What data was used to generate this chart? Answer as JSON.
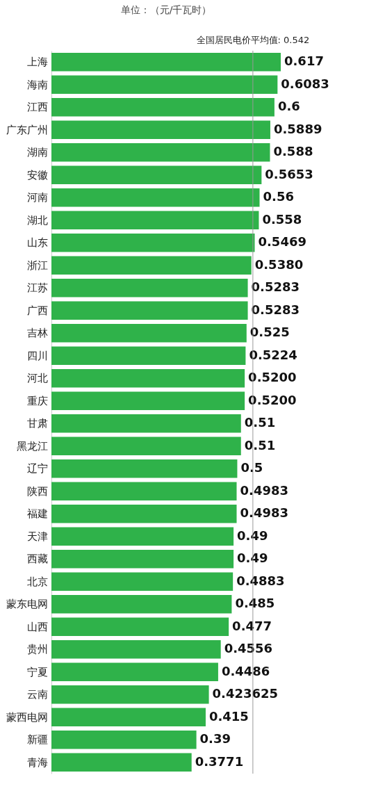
{
  "chart_data": {
    "type": "bar",
    "orientation": "horizontal",
    "title": "单位：（元/千瓦时）",
    "categories": [
      "上海",
      "海南",
      "江西",
      "广东广州",
      "湖南",
      "安徽",
      "河南",
      "湖北",
      "山东",
      "浙江",
      "江苏",
      "广西",
      "吉林",
      "四川",
      "河北",
      "重庆",
      "甘肃",
      "黑龙江",
      "辽宁",
      "陕西",
      "福建",
      "天津",
      "西藏",
      "北京",
      "蒙东电网",
      "山西",
      "贵州",
      "宁夏",
      "云南",
      "蒙西电网",
      "新疆",
      "青海"
    ],
    "values": [
      0.617,
      0.6083,
      0.6,
      0.5889,
      0.588,
      0.5653,
      0.56,
      0.558,
      0.5469,
      0.538,
      0.5283,
      0.5283,
      0.525,
      0.5224,
      0.52,
      0.52,
      0.51,
      0.51,
      0.5,
      0.4983,
      0.4983,
      0.49,
      0.49,
      0.4883,
      0.485,
      0.477,
      0.4556,
      0.4486,
      0.423625,
      0.415,
      0.39,
      0.3771
    ],
    "value_labels": [
      "0.617",
      "0.6083",
      "0.6",
      "0.5889",
      "0.588",
      "0.5653",
      "0.56",
      "0.558",
      "0.5469",
      "0.5380",
      "0.5283",
      "0.5283",
      "0.525",
      "0.5224",
      "0.5200",
      "0.5200",
      "0.51",
      "0.51",
      "0.5",
      "0.4983",
      "0.4983",
      "0.49",
      "0.49",
      "0.4883",
      "0.485",
      "0.477",
      "0.4556",
      "0.4486",
      "0.423625",
      "0.415",
      "0.39",
      "0.3771"
    ],
    "color": "#2fb24a",
    "tick_labels": "y",
    "ref_lines": [
      {
        "axis": "x",
        "value": 0.542,
        "label": "全国居民电价平均值: 0.542"
      }
    ]
  }
}
